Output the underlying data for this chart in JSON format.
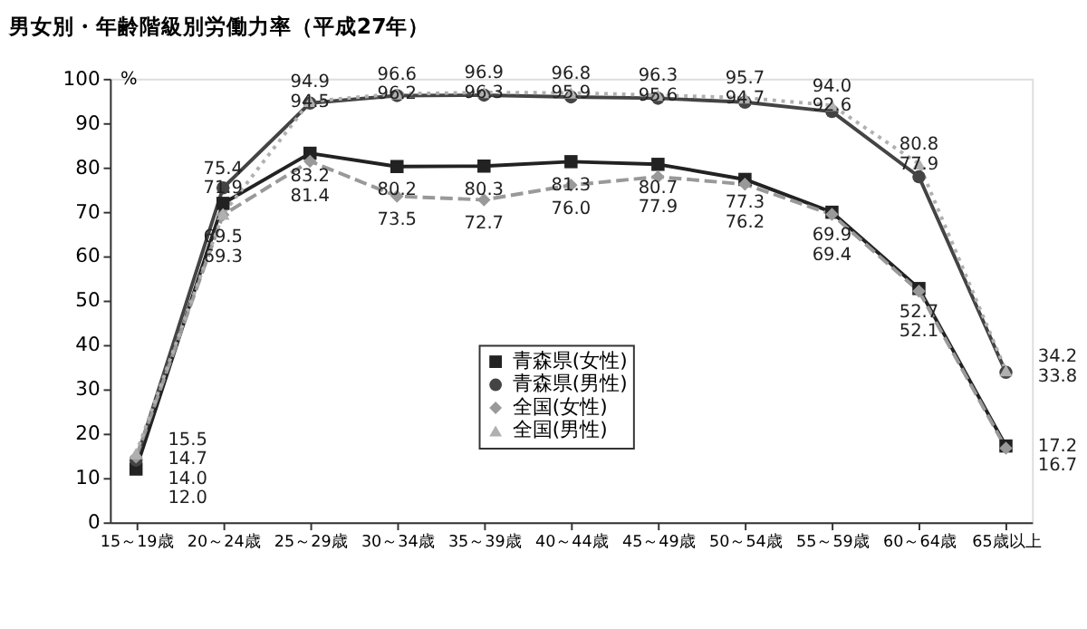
{
  "chart_data": {
    "type": "line",
    "title": "男女別・年齢階級別労働力率（平成27年）",
    "ylabel": "%",
    "categories": [
      "15～19歳",
      "20～24歳",
      "25～29歳",
      "30～34歳",
      "35～39歳",
      "40～44歳",
      "45～49歳",
      "50～54歳",
      "55～59歳",
      "60～64歳",
      "65歳以上"
    ],
    "series": [
      {
        "name": "青森県(女性)",
        "color": "#222222",
        "marker": "square",
        "line_style": "solid",
        "values": [
          12.0,
          71.9,
          83.2,
          80.2,
          80.3,
          81.3,
          80.7,
          77.3,
          69.9,
          52.7,
          17.2
        ],
        "value_labels": [
          "12.0",
          "71.9",
          "83.2",
          "80.2",
          "80.3",
          "81.3",
          "80.7",
          "77.3",
          "69.9",
          "52.7",
          "17.2"
        ]
      },
      {
        "name": "青森県(男性)",
        "color": "#444444",
        "marker": "circle",
        "line_style": "solid",
        "values": [
          14.0,
          75.4,
          94.5,
          96.2,
          96.3,
          95.9,
          95.6,
          94.7,
          92.6,
          77.9,
          33.8
        ],
        "value_labels": [
          "14.0",
          "75.4",
          "94.5",
          "96.2",
          "96.3",
          "95.9",
          "95.6",
          "94.7",
          "92.6",
          "77.9",
          "33.8"
        ]
      },
      {
        "name": "全国(女性)",
        "color": "#999999",
        "marker": "diamond",
        "line_style": "dashed",
        "values": [
          14.7,
          69.3,
          81.4,
          73.5,
          72.7,
          76.0,
          77.9,
          76.2,
          69.4,
          52.1,
          16.7
        ],
        "value_labels": [
          "14.7",
          "69.3",
          "81.4",
          "73.5",
          "72.7",
          "76.0",
          "77.9",
          "76.2",
          "69.4",
          "52.1",
          "16.7"
        ]
      },
      {
        "name": "全国(男性)",
        "color": "#b0b0b0",
        "marker": "triangle",
        "line_style": "dotted",
        "values": [
          15.5,
          69.5,
          94.9,
          96.6,
          96.9,
          96.8,
          96.3,
          95.7,
          94.0,
          80.8,
          34.2
        ],
        "value_labels": [
          "15.5",
          "69.5",
          "94.9",
          "96.6",
          "96.9",
          "96.8",
          "96.3",
          "95.7",
          "94.0",
          "80.8",
          "34.2"
        ]
      }
    ],
    "ylim": [
      0,
      100
    ],
    "yticks": [
      0,
      10,
      20,
      30,
      40,
      50,
      60,
      70,
      80,
      90,
      100
    ],
    "grid": false,
    "legend": "bottom right"
  }
}
